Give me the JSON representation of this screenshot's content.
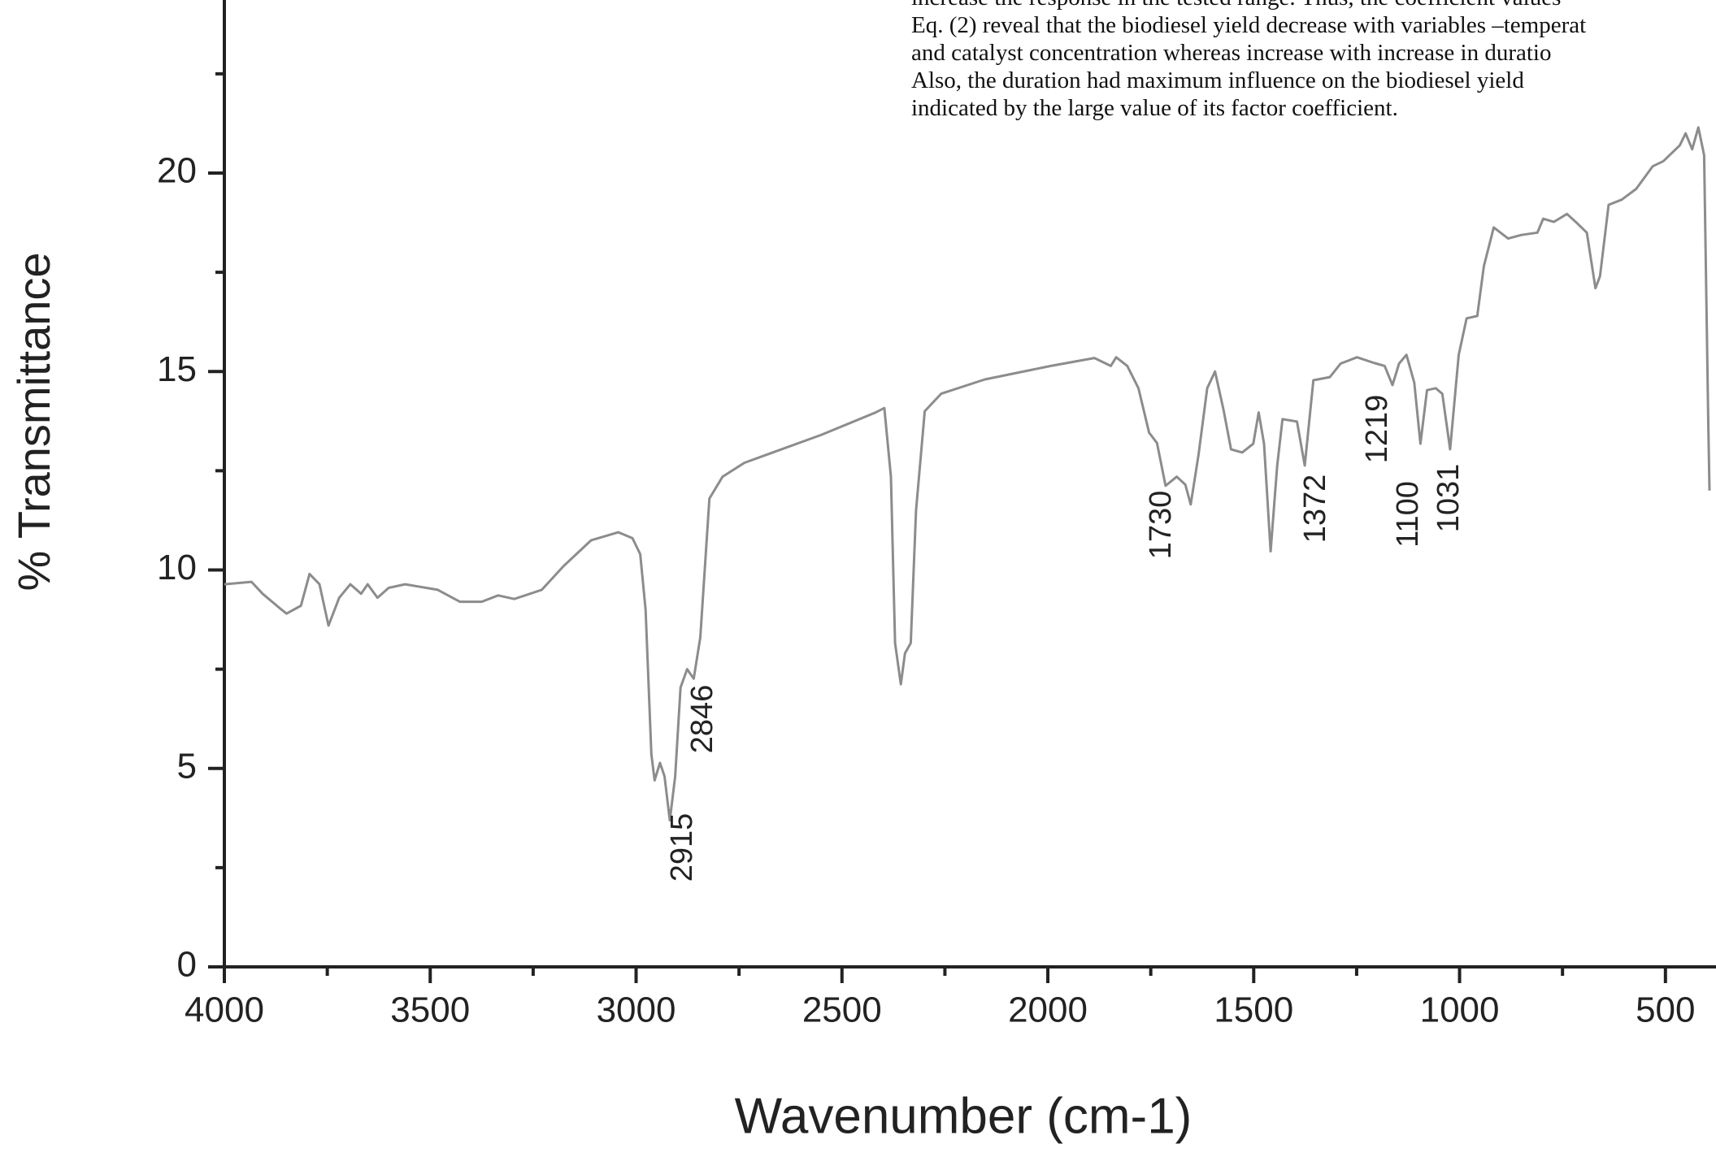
{
  "chart_data": {
    "type": "line",
    "xlabel": "Wavenumber (cm-1)",
    "ylabel": "% Transmittance",
    "overlay_text": [
      "increase the response in the tested range. Thus, the coefficient values",
      "Eq. (2) reveal that the biodiesel yield decrease with variables –temperat",
      "and catalyst concentration whereas increase with increase in duratio",
      "Also, the duration had maximum influence on the biodiesel yield",
      "indicated by the large value of its factor coefficient."
    ],
    "annotations": [
      "2915",
      "2846",
      "1730",
      "1372",
      "1219",
      "1100",
      "1031"
    ],
    "color": "#8c8c8c",
    "xlim": [
      4000,
      393
    ],
    "ylim": [
      0,
      24.36
    ],
    "xticks": [
      4000,
      3500,
      3000,
      2500,
      2000,
      1500,
      1000,
      500
    ],
    "xticks_minor": [
      3750,
      3250,
      2750,
      2250,
      1750,
      1250,
      750
    ],
    "yticks": [
      0,
      5,
      10,
      15,
      20
    ],
    "yticks_minor": [
      2.5,
      7.5,
      12.5,
      17.5,
      22.5
    ],
    "x": [
      4000,
      3934,
      3907,
      3867,
      3849,
      3814,
      3793,
      3769,
      3747,
      3721,
      3694,
      3668,
      3652,
      3628,
      3601,
      3561,
      3482,
      3428,
      3375,
      3335,
      3296,
      3229,
      3176,
      3109,
      3043,
      3009,
      2990,
      2977,
      2963,
      2955,
      2942,
      2931,
      2918,
      2905,
      2892,
      2876,
      2860,
      2844,
      2822,
      2790,
      2737,
      2684,
      2551,
      2418,
      2397,
      2381,
      2371,
      2357,
      2347,
      2333,
      2320,
      2299,
      2259,
      2153,
      1993,
      1887,
      1847,
      1834,
      1807,
      1780,
      1754,
      1735,
      1714,
      1687,
      1666,
      1653,
      1634,
      1613,
      1594,
      1573,
      1555,
      1528,
      1501,
      1488,
      1475,
      1459,
      1443,
      1430,
      1395,
      1376,
      1355,
      1315,
      1289,
      1249,
      1209,
      1182,
      1163,
      1147,
      1129,
      1110,
      1095,
      1079,
      1058,
      1042,
      1023,
      1002,
      983,
      957,
      941,
      917,
      882,
      850,
      811,
      797,
      771,
      739,
      718,
      691,
      670,
      659,
      638,
      606,
      571,
      531,
      505,
      465,
      451,
      435,
      420,
      406,
      396,
      393
    ],
    "values": [
      9.64,
      9.7,
      9.4,
      9.05,
      8.9,
      9.1,
      9.9,
      9.64,
      8.6,
      9.3,
      9.64,
      9.4,
      9.64,
      9.3,
      9.55,
      9.64,
      9.5,
      9.2,
      9.2,
      9.36,
      9.27,
      9.5,
      10.1,
      10.75,
      10.95,
      10.8,
      10.4,
      9.0,
      5.36,
      4.7,
      5.14,
      4.8,
      3.69,
      4.8,
      7.04,
      7.5,
      7.26,
      8.3,
      11.8,
      12.35,
      12.7,
      12.9,
      13.4,
      13.97,
      14.08,
      12.35,
      8.16,
      7.12,
      7.9,
      8.16,
      11.5,
      14.0,
      14.44,
      14.8,
      15.14,
      15.34,
      15.14,
      15.36,
      15.14,
      14.58,
      13.46,
      13.2,
      12.12,
      12.35,
      12.15,
      11.65,
      12.9,
      14.58,
      15.0,
      14.02,
      13.04,
      12.96,
      13.18,
      13.97,
      13.18,
      10.47,
      12.63,
      13.8,
      13.74,
      12.63,
      14.78,
      14.86,
      15.2,
      15.36,
      15.22,
      15.14,
      14.66,
      15.2,
      15.42,
      14.72,
      13.18,
      14.53,
      14.58,
      14.44,
      13.04,
      15.42,
      16.34,
      16.4,
      17.65,
      18.63,
      18.35,
      18.44,
      18.5,
      18.85,
      18.77,
      18.97,
      18.77,
      18.5,
      17.1,
      17.4,
      19.2,
      19.33,
      19.6,
      20.17,
      20.3,
      20.7,
      21.0,
      20.6,
      21.15,
      20.45,
      13.7,
      12.0
    ]
  }
}
